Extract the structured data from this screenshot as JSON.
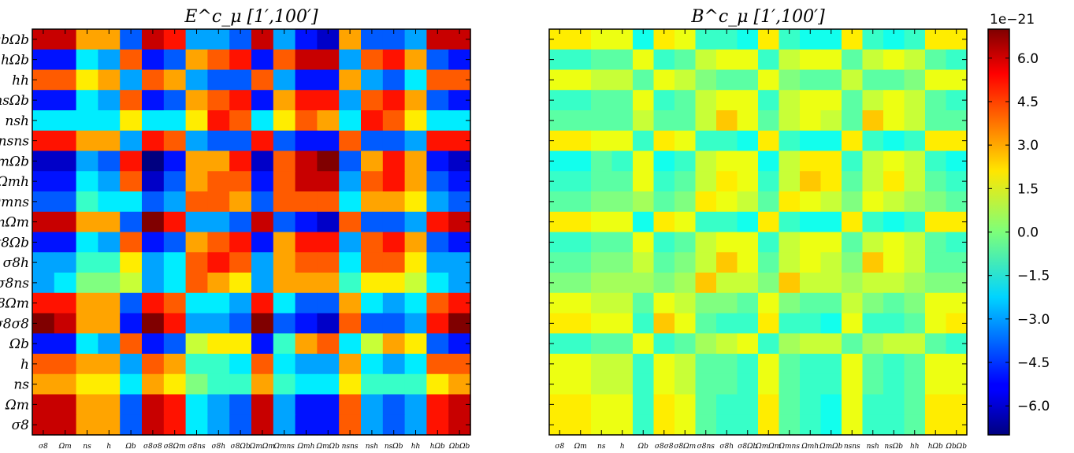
{
  "chart_data": [
    {
      "type": "heatmap",
      "title": "E^c_μ [1′,100′]",
      "xlabels": [
        "σ8",
        "Ωm",
        "ns",
        "h",
        "Ωb",
        "σ8σ8",
        "σ8Ωm",
        "σ8ns",
        "σ8h",
        "σ8Ωb",
        "ΩmΩm",
        "Ωmns",
        "Ωmh",
        "ΩmΩb",
        "nsns",
        "nsh",
        "nsΩb",
        "hh",
        "hΩb",
        "ΩbΩb"
      ],
      "ylabels_top_to_bottom": [
        "ΩbΩb",
        "hΩb",
        "hh",
        "nsΩb",
        "nsh",
        "nsns",
        "ΩmΩb",
        "Ωmh",
        "Ωmns",
        "ΩmΩm",
        "σ8Ωb",
        "σ8h",
        "σ8ns",
        "σ8Ωm",
        "σ8σ8",
        "Ωb",
        "h",
        "ns",
        "Ωm",
        "σ8"
      ],
      "values_top_to_bottom_rows": [
        [
          6,
          6,
          3,
          3,
          -4,
          6,
          5,
          -3,
          -3,
          -4,
          6,
          -3,
          -5,
          -6,
          3,
          -4,
          -4,
          -3,
          6,
          6
        ],
        [
          -5,
          -5,
          -2,
          -3,
          4,
          -5,
          -4,
          3,
          4,
          5,
          -5,
          4,
          6,
          6,
          -3,
          4,
          5,
          3,
          -4,
          -5
        ],
        [
          4,
          4,
          2,
          3,
          -3,
          4,
          3,
          -3,
          -4,
          -4,
          4,
          -3,
          -5,
          -5,
          3,
          -3,
          -4,
          -2,
          4,
          4
        ],
        [
          -5,
          -5,
          -2,
          -3,
          4,
          -5,
          -4,
          3,
          4,
          5,
          -5,
          3,
          5,
          5,
          -3,
          4,
          5,
          3,
          -4,
          -5
        ],
        [
          -2,
          -2,
          -2,
          -2,
          2,
          -2,
          -2,
          2,
          5,
          4,
          -2,
          2,
          4,
          3,
          -2,
          5,
          4,
          2,
          -2,
          -2
        ],
        [
          5,
          5,
          3,
          3,
          -3,
          5,
          4,
          -3,
          -4,
          -4,
          5,
          -4,
          -5,
          -5,
          4,
          -4,
          -4,
          -3,
          5,
          5
        ],
        [
          -6,
          -6,
          -3,
          -4,
          5,
          -7,
          -5,
          3,
          3,
          5,
          -6,
          4,
          6,
          7,
          -4,
          3,
          5,
          3,
          -5,
          -6
        ],
        [
          -5,
          -5,
          -2,
          -3,
          4,
          -6,
          -4,
          3,
          4,
          4,
          -5,
          4,
          6,
          6,
          -3,
          4,
          5,
          3,
          -4,
          -5
        ],
        [
          -4,
          -4,
          -1,
          -2,
          -2,
          -4,
          -3,
          4,
          4,
          3,
          -4,
          4,
          4,
          4,
          -2,
          3,
          3,
          2,
          -3,
          -4
        ],
        [
          6,
          6,
          3,
          3,
          -4,
          7,
          5,
          -3,
          -3,
          -4,
          6,
          -4,
          -5,
          -6,
          4,
          -4,
          -4,
          -3,
          5,
          6
        ],
        [
          -5,
          -5,
          -2,
          -3,
          4,
          -5,
          -4,
          3,
          4,
          5,
          -5,
          3,
          5,
          5,
          -3,
          4,
          5,
          3,
          -4,
          -5
        ],
        [
          -3,
          -3,
          -1,
          -1,
          2,
          -3,
          -2,
          4,
          5,
          4,
          -3,
          3,
          4,
          4,
          -2,
          4,
          4,
          2,
          -3,
          -3
        ],
        [
          -3,
          -2,
          0,
          0,
          1,
          -3,
          -2,
          4,
          3,
          2,
          -3,
          3,
          3,
          3,
          -1,
          2,
          2,
          1,
          -2,
          -3
        ],
        [
          5,
          5,
          3,
          3,
          -4,
          5,
          4,
          -2,
          -2,
          -3,
          5,
          -2,
          -4,
          -4,
          3,
          -2,
          -3,
          -2,
          4,
          5
        ],
        [
          7,
          6,
          3,
          3,
          -5,
          7,
          5,
          -3,
          -3,
          -4,
          7,
          -4,
          -5,
          -6,
          4,
          -4,
          -4,
          -3,
          5,
          7
        ],
        [
          -5,
          -5,
          -2,
          -3,
          4,
          -5,
          -4,
          1,
          2,
          2,
          -5,
          -1,
          3,
          4,
          -2,
          1,
          3,
          2,
          -4,
          -5
        ],
        [
          4,
          4,
          3,
          3,
          -3,
          4,
          3,
          -1,
          -1,
          -2,
          4,
          -2,
          -3,
          -3,
          3,
          -2,
          -3,
          -2,
          4,
          4
        ],
        [
          3,
          3,
          2,
          2,
          -2,
          3,
          2,
          0,
          -1,
          -1,
          3,
          -1,
          -2,
          -2,
          2,
          -1,
          -1,
          -1,
          2,
          3
        ],
        [
          6,
          6,
          3,
          3,
          -4,
          6,
          5,
          -2,
          -3,
          -4,
          6,
          -3,
          -5,
          -5,
          4,
          -3,
          -4,
          -3,
          5,
          6
        ],
        [
          6,
          6,
          3,
          3,
          -4,
          6,
          5,
          -2,
          -3,
          -4,
          6,
          -3,
          -5,
          -5,
          4,
          -3,
          -4,
          -3,
          5,
          6
        ]
      ]
    },
    {
      "type": "heatmap",
      "title": "B^c_μ [1′,100′]",
      "xlabels": [
        "σ8",
        "Ωm",
        "ns",
        "h",
        "Ωb",
        "σ8σ8",
        "σ8Ωm",
        "σ8ns",
        "σ8h",
        "σ8Ωb",
        "ΩmΩm",
        "Ωmns",
        "Ωmh",
        "ΩmΩb",
        "nsns",
        "nsh",
        "nsΩb",
        "hh",
        "hΩb",
        "ΩbΩb"
      ],
      "ylabels_top_to_bottom": [
        "ΩbΩb",
        "hΩb",
        "hh",
        "nsΩb",
        "nsh",
        "nsns",
        "ΩmΩb",
        "Ωmh",
        "Ωmns",
        "ΩmΩm",
        "σ8Ωb",
        "σ8h",
        "σ8ns",
        "σ8Ωm",
        "σ8σ8",
        "Ωb",
        "h",
        "ns",
        "Ωm",
        "σ8"
      ],
      "values_top_to_bottom_rows": [
        [
          2,
          2,
          1.5,
          1.5,
          -1.5,
          2,
          1.5,
          -1,
          -1,
          -1.5,
          2,
          -1,
          -1.5,
          -1.5,
          2,
          -1,
          -1.5,
          -1,
          2,
          2
        ],
        [
          -1,
          -1,
          -0.5,
          -0.5,
          1.5,
          -1,
          -0.5,
          1,
          1.5,
          1.5,
          -1,
          1,
          1.5,
          1.5,
          -0.5,
          1,
          1.5,
          1,
          -0.5,
          -1
        ],
        [
          1.5,
          1.5,
          1,
          1,
          -0.5,
          1.5,
          1,
          0,
          -0.5,
          -0.5,
          1.5,
          0,
          -0.5,
          -0.5,
          1,
          -0.5,
          -0.5,
          0,
          1.5,
          1.5
        ],
        [
          -1,
          -1,
          -0.5,
          -0.5,
          1.5,
          -1,
          -0.5,
          1,
          1.5,
          1.5,
          -1,
          1,
          1.5,
          1.5,
          -0.5,
          1,
          1.5,
          1,
          -0.5,
          -1
        ],
        [
          -0.5,
          -0.5,
          -0.5,
          -0.5,
          1,
          -0.5,
          -0.5,
          1,
          2.5,
          1.5,
          -0.5,
          1,
          1.5,
          1,
          -0.5,
          2.5,
          1.5,
          1,
          -0.5,
          -0.5
        ],
        [
          2,
          2,
          1.5,
          1.5,
          -1,
          2,
          1.5,
          -1,
          -1,
          -1.5,
          2,
          -1,
          -1.5,
          -1.5,
          2,
          -1,
          -1.5,
          -1,
          2,
          2
        ],
        [
          -1.5,
          -1.5,
          -0.5,
          -1,
          1.5,
          -1.5,
          -1,
          1,
          1.5,
          1.5,
          -1.5,
          1,
          2,
          2,
          -1,
          1,
          1.5,
          1,
          -1,
          -1.5
        ],
        [
          -1,
          -1,
          -0.5,
          -0.5,
          1.5,
          -1,
          -0.5,
          1,
          2,
          1.5,
          -1,
          1,
          2.5,
          2,
          -0.5,
          1,
          2,
          1,
          -0.5,
          -1
        ],
        [
          -0.5,
          -0.5,
          0,
          0,
          0.5,
          -0.5,
          0,
          2,
          1.5,
          1,
          -0.5,
          2,
          1.5,
          1,
          0,
          1.5,
          1,
          0.5,
          0,
          -0.5
        ],
        [
          2,
          2,
          1.5,
          1.5,
          -1.5,
          2,
          1.5,
          -1,
          -1,
          -1.5,
          2,
          -1,
          -1.5,
          -1.5,
          2,
          -1,
          -1.5,
          -1,
          2,
          2
        ],
        [
          -1,
          -1,
          -0.5,
          -0.5,
          1.5,
          -1,
          -0.5,
          1,
          1.5,
          1.5,
          -1,
          1,
          1.5,
          1.5,
          -0.5,
          1,
          1.5,
          1,
          -0.5,
          -1
        ],
        [
          -0.5,
          -0.5,
          0,
          0,
          1,
          -0.5,
          0,
          1,
          2.5,
          1.5,
          -0.5,
          1,
          1.5,
          1,
          0,
          2.5,
          1.5,
          1,
          -0.5,
          -0.5
        ],
        [
          0,
          0,
          0.5,
          0.5,
          0.5,
          0,
          0.5,
          2.5,
          1,
          1,
          0,
          2.5,
          1,
          1,
          0.5,
          1,
          1,
          0.5,
          0,
          0
        ],
        [
          1.5,
          1.5,
          1,
          1,
          -0.5,
          1.5,
          1,
          0,
          0,
          -0.5,
          1.5,
          0,
          -0.5,
          -0.5,
          1,
          0,
          -0.5,
          0,
          1.5,
          1.5
        ],
        [
          2,
          2,
          1.5,
          1.5,
          -1,
          2.5,
          1.5,
          -0.5,
          -1,
          -1,
          2,
          -1,
          -1,
          -1.5,
          1.5,
          -1,
          -1,
          -0.5,
          1.5,
          2
        ],
        [
          -1,
          -1,
          -0.5,
          -0.5,
          1.5,
          -1,
          -0.5,
          0.5,
          1,
          1.5,
          -1,
          0.5,
          1,
          1,
          -0.5,
          0.5,
          1,
          1,
          -0.5,
          -1
        ],
        [
          1.5,
          1.5,
          1,
          1,
          -1,
          1.5,
          1,
          -0.5,
          -0.5,
          -1,
          1.5,
          -0.5,
          -1,
          -1,
          1.5,
          -0.5,
          -1,
          -0.5,
          1.5,
          1.5
        ],
        [
          1.5,
          1.5,
          1,
          1,
          -1,
          1.5,
          1,
          -0.5,
          -0.5,
          -1,
          1.5,
          -0.5,
          -1,
          -1,
          1.5,
          -0.5,
          -1,
          -0.5,
          1.5,
          1.5
        ],
        [
          2,
          2,
          1.5,
          1.5,
          -1,
          2,
          1.5,
          -0.5,
          -1,
          -1,
          2,
          -0.5,
          -1,
          -1.5,
          1.5,
          -1,
          -1,
          -0.5,
          2,
          2
        ],
        [
          2,
          2,
          1.5,
          1.5,
          -1,
          2,
          1.5,
          -0.5,
          -1,
          -1,
          2,
          -0.5,
          -1,
          -1.5,
          1.5,
          -1,
          -1,
          -0.5,
          2,
          2
        ]
      ]
    }
  ],
  "colorbar": {
    "exponent_label": "1e−21",
    "ticks": [
      "6.0",
      "4.5",
      "3.0",
      "1.5",
      "0.0",
      "−1.5",
      "−3.0",
      "−4.5",
      "−6.0"
    ],
    "tick_values": [
      6,
      4.5,
      3,
      1.5,
      0,
      -1.5,
      -3,
      -4.5,
      -6
    ],
    "range": [
      -7,
      7
    ],
    "colormap": "jet"
  }
}
